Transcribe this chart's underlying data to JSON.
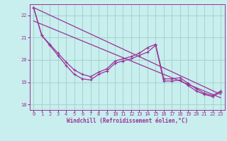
{
  "xlabel": "Windchill (Refroidissement éolien,°C)",
  "background_color": "#c8eeed",
  "line_color": "#993399",
  "grid_color": "#9ecfcc",
  "xlim": [
    -0.5,
    23.5
  ],
  "ylim": [
    17.75,
    22.5
  ],
  "yticks": [
    18,
    19,
    20,
    21,
    22
  ],
  "xticks": [
    0,
    1,
    2,
    3,
    4,
    5,
    6,
    7,
    8,
    9,
    10,
    11,
    12,
    13,
    14,
    15,
    16,
    17,
    18,
    19,
    20,
    21,
    22,
    23
  ],
  "series1_x": [
    0,
    1,
    2,
    3,
    4,
    5,
    6,
    7,
    8,
    9,
    10,
    11,
    12,
    13,
    14,
    15,
    16,
    17,
    18,
    19,
    20,
    21,
    22,
    23
  ],
  "series1_y": [
    22.35,
    21.1,
    20.65,
    20.2,
    19.75,
    19.35,
    19.15,
    19.1,
    19.35,
    19.5,
    19.85,
    19.95,
    20.05,
    20.2,
    20.35,
    20.65,
    19.05,
    19.05,
    19.1,
    18.85,
    18.6,
    18.45,
    18.35,
    18.55
  ],
  "series2_x": [
    0,
    1,
    2,
    3,
    4,
    5,
    6,
    7,
    8,
    9,
    10,
    11,
    12,
    13,
    14,
    15,
    16,
    17,
    18,
    19,
    20,
    21,
    22,
    23
  ],
  "series2_y": [
    22.35,
    21.1,
    20.7,
    20.3,
    19.9,
    19.55,
    19.35,
    19.25,
    19.45,
    19.6,
    19.95,
    20.05,
    20.15,
    20.3,
    20.55,
    20.7,
    19.15,
    19.15,
    19.2,
    18.95,
    18.7,
    18.5,
    18.4,
    18.6
  ],
  "trend1_x": [
    0,
    23
  ],
  "trend1_y": [
    22.35,
    18.45
  ],
  "trend2_x": [
    0,
    23
  ],
  "trend2_y": [
    21.75,
    18.3
  ]
}
